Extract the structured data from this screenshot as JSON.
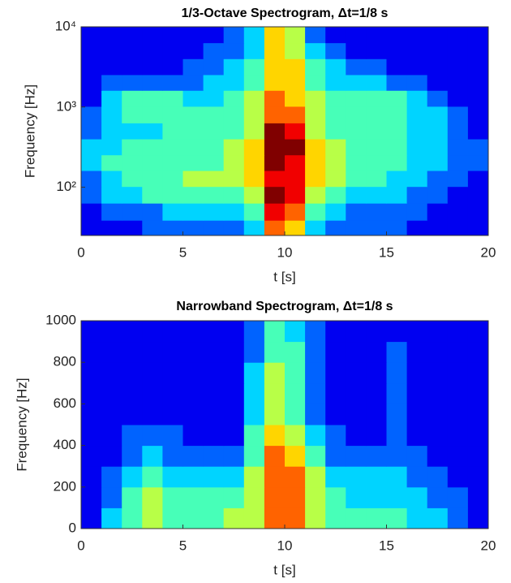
{
  "chart_data": [
    {
      "type": "spectrogram",
      "title": "1/3-Octave Spectrogram, Δt=1/8 s",
      "x_label": "t [s]",
      "y_label": "Frequency [Hz]",
      "xlim": [
        0,
        20
      ],
      "xticks": [
        0,
        5,
        10,
        15,
        20
      ],
      "ylim": [
        25,
        10000
      ],
      "log_y": true,
      "yticks": [
        {
          "value": 100,
          "label": "10²"
        },
        {
          "value": 1000,
          "label": "10³"
        },
        {
          "value": 10000,
          "label": "10⁴"
        }
      ],
      "colormap": "jet",
      "zlim": [
        0,
        9
      ],
      "t": [
        0.5,
        1.5,
        2.5,
        3.5,
        4.5,
        5.5,
        6.5,
        7.5,
        8.5,
        9.5,
        10.5,
        11.5,
        12.5,
        13.5,
        14.5,
        15.5,
        16.5,
        17.5,
        18.5,
        19.5
      ],
      "f": [
        30,
        50,
        80,
        130,
        200,
        320,
        500,
        800,
        1300,
        2000,
        3200,
        5000,
        8000
      ],
      "z": [
        [
          1,
          1,
          1,
          2,
          2,
          2,
          2,
          2,
          3,
          7,
          6,
          3,
          2,
          2,
          2,
          2,
          1,
          1,
          1,
          1
        ],
        [
          1,
          2,
          2,
          2,
          3,
          3,
          3,
          3,
          4,
          8,
          7,
          4,
          3,
          2,
          2,
          2,
          2,
          1,
          1,
          1
        ],
        [
          2,
          3,
          3,
          4,
          4,
          4,
          4,
          4,
          5,
          9,
          8,
          5,
          4,
          3,
          3,
          3,
          2,
          2,
          1,
          1
        ],
        [
          2,
          3,
          4,
          4,
          4,
          5,
          5,
          5,
          6,
          8,
          8,
          6,
          5,
          4,
          4,
          3,
          3,
          2,
          2,
          1
        ],
        [
          3,
          4,
          4,
          4,
          4,
          4,
          4,
          5,
          6,
          9,
          8,
          6,
          5,
          4,
          4,
          4,
          3,
          3,
          2,
          2
        ],
        [
          3,
          3,
          4,
          4,
          4,
          4,
          4,
          5,
          6,
          9,
          9,
          6,
          5,
          4,
          4,
          4,
          3,
          3,
          2,
          2
        ],
        [
          2,
          3,
          3,
          3,
          4,
          4,
          4,
          4,
          5,
          9,
          8,
          5,
          4,
          4,
          4,
          4,
          3,
          3,
          2,
          1
        ],
        [
          2,
          3,
          4,
          4,
          4,
          4,
          4,
          4,
          5,
          7,
          7,
          5,
          4,
          4,
          4,
          4,
          3,
          3,
          2,
          1
        ],
        [
          1,
          3,
          4,
          4,
          4,
          3,
          3,
          4,
          5,
          7,
          6,
          5,
          4,
          4,
          4,
          4,
          3,
          2,
          1,
          1
        ],
        [
          1,
          2,
          2,
          2,
          2,
          2,
          3,
          3,
          4,
          6,
          6,
          4,
          3,
          3,
          3,
          2,
          2,
          1,
          1,
          1
        ],
        [
          1,
          1,
          1,
          1,
          1,
          2,
          2,
          3,
          4,
          6,
          6,
          4,
          3,
          2,
          2,
          1,
          1,
          1,
          1,
          1
        ],
        [
          1,
          1,
          1,
          1,
          1,
          1,
          2,
          2,
          3,
          6,
          5,
          3,
          2,
          1,
          1,
          1,
          1,
          1,
          1,
          1
        ],
        [
          1,
          1,
          1,
          1,
          1,
          1,
          1,
          2,
          3,
          6,
          5,
          2,
          1,
          1,
          1,
          1,
          1,
          1,
          1,
          1
        ]
      ]
    },
    {
      "type": "spectrogram",
      "title": "Narrowband Spectrogram, Δt=1/8 s",
      "x_label": "t [s]",
      "y_label": "Frequency [Hz]",
      "xlim": [
        0,
        20
      ],
      "xticks": [
        0,
        5,
        10,
        15,
        20
      ],
      "ylim": [
        0,
        1000
      ],
      "log_y": false,
      "yticks": [
        0,
        200,
        400,
        600,
        800,
        1000
      ],
      "colormap": "jet",
      "zlim": [
        0,
        9
      ],
      "t": [
        0.5,
        1.5,
        2.5,
        3.5,
        4.5,
        5.5,
        6.5,
        7.5,
        8.5,
        9.5,
        10.5,
        11.5,
        12.5,
        13.5,
        14.5,
        15.5,
        16.5,
        17.5,
        18.5,
        19.5
      ],
      "f": [
        50,
        150,
        250,
        350,
        450,
        550,
        650,
        750,
        850,
        950
      ],
      "z": [
        [
          1,
          3,
          4,
          5,
          4,
          4,
          4,
          5,
          5,
          7,
          7,
          5,
          4,
          4,
          4,
          4,
          3,
          3,
          2,
          1
        ],
        [
          1,
          2,
          4,
          5,
          4,
          4,
          4,
          4,
          5,
          7,
          7,
          5,
          4,
          3,
          3,
          3,
          3,
          2,
          2,
          1
        ],
        [
          1,
          2,
          3,
          4,
          3,
          3,
          3,
          3,
          5,
          7,
          7,
          5,
          3,
          3,
          3,
          3,
          2,
          2,
          1,
          1
        ],
        [
          1,
          1,
          2,
          3,
          2,
          2,
          2,
          2,
          4,
          7,
          6,
          4,
          2,
          2,
          2,
          2,
          2,
          1,
          1,
          1
        ],
        [
          1,
          1,
          2,
          2,
          2,
          1,
          1,
          1,
          4,
          6,
          5,
          3,
          2,
          1,
          1,
          2,
          1,
          1,
          1,
          1
        ],
        [
          1,
          1,
          1,
          1,
          1,
          1,
          1,
          1,
          3,
          5,
          4,
          2,
          1,
          1,
          1,
          2,
          1,
          1,
          1,
          1
        ],
        [
          1,
          1,
          1,
          1,
          1,
          1,
          1,
          1,
          3,
          5,
          4,
          2,
          1,
          1,
          1,
          2,
          1,
          1,
          1,
          1
        ],
        [
          1,
          1,
          1,
          1,
          1,
          1,
          1,
          1,
          3,
          5,
          4,
          2,
          1,
          1,
          1,
          2,
          1,
          1,
          1,
          1
        ],
        [
          1,
          1,
          1,
          1,
          1,
          1,
          1,
          1,
          2,
          4,
          4,
          2,
          1,
          1,
          1,
          2,
          1,
          1,
          1,
          1
        ],
        [
          1,
          1,
          1,
          1,
          1,
          1,
          1,
          1,
          2,
          4,
          3,
          2,
          1,
          1,
          1,
          1,
          1,
          1,
          1,
          1
        ]
      ]
    }
  ]
}
